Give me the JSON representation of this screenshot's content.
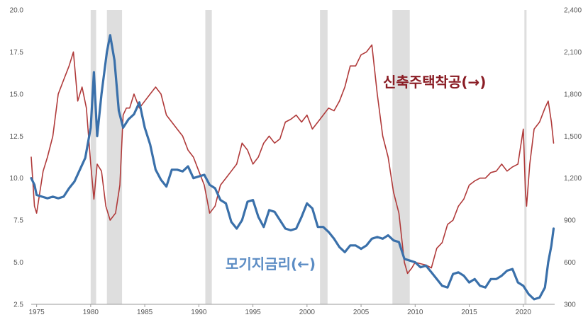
{
  "chart_data": {
    "type": "line",
    "title": "",
    "xlabel": "",
    "ylabel_left": "",
    "ylabel_right": "",
    "xlim": [
      1974.5,
      2022.9
    ],
    "y_left_lim": [
      2.5,
      20.0
    ],
    "y_right_lim": [
      300,
      2400
    ],
    "x_ticks": [
      "1975",
      "1980",
      "1985",
      "1990",
      "1995",
      "2000",
      "2005",
      "2010",
      "2015",
      "2020"
    ],
    "y_left_ticks": [
      "2.5",
      "5.0",
      "7.5",
      "10.0",
      "12.5",
      "15.0",
      "17.5",
      "20.0"
    ],
    "y_right_ticks": [
      "300",
      "600",
      "900",
      "1,200",
      "1,500",
      "1,800",
      "2,100",
      "2,400"
    ],
    "grid": "vertical none, horizontal none",
    "recessions": [
      [
        1980.0,
        1980.5
      ],
      [
        1981.5,
        1982.9
      ],
      [
        1990.6,
        1991.2
      ],
      [
        2001.2,
        2001.9
      ],
      [
        2007.9,
        2009.5
      ],
      [
        2020.1,
        2020.3
      ]
    ],
    "series": [
      {
        "name": "신축주택착공(→)",
        "axis": "right",
        "color": "#b03a3a",
        "x": [
          1974.5,
          1974.8,
          1975.0,
          1975.3,
          1975.6,
          1976.0,
          1976.5,
          1977.0,
          1977.5,
          1978.0,
          1978.4,
          1978.8,
          1979.2,
          1979.6,
          1980.0,
          1980.3,
          1980.6,
          1981.0,
          1981.4,
          1981.8,
          1982.3,
          1982.7,
          1983.0,
          1983.3,
          1983.6,
          1984.0,
          1984.5,
          1985.0,
          1985.5,
          1986.0,
          1986.5,
          1987.0,
          1987.5,
          1988.0,
          1988.5,
          1989.0,
          1989.5,
          1990.0,
          1990.5,
          1991.0,
          1991.5,
          1992.0,
          1992.5,
          1993.0,
          1993.5,
          1994.0,
          1994.5,
          1995.0,
          1995.5,
          1996.0,
          1996.5,
          1997.0,
          1997.5,
          1998.0,
          1998.5,
          1999.0,
          1999.5,
          2000.0,
          2000.5,
          2001.0,
          2001.5,
          2002.0,
          2002.5,
          2003.0,
          2003.5,
          2004.0,
          2004.5,
          2005.0,
          2005.5,
          2006.0,
          2006.5,
          2007.0,
          2007.5,
          2008.0,
          2008.5,
          2009.0,
          2009.3,
          2009.7,
          2010.0,
          2010.5,
          2011.0,
          2011.5,
          2012.0,
          2012.5,
          2013.0,
          2013.5,
          2014.0,
          2014.5,
          2015.0,
          2015.5,
          2016.0,
          2016.5,
          2017.0,
          2017.5,
          2018.0,
          2018.5,
          2019.0,
          2019.5,
          2020.0,
          2020.2,
          2020.3,
          2020.6,
          2021.0,
          2021.5,
          2022.0,
          2022.3,
          2022.6,
          2022.8
        ],
        "values": [
          1350,
          1000,
          950,
          1100,
          1250,
          1350,
          1500,
          1800,
          1900,
          2000,
          2100,
          1750,
          1850,
          1700,
          1300,
          1050,
          1300,
          1250,
          1000,
          900,
          950,
          1150,
          1650,
          1700,
          1700,
          1800,
          1700,
          1750,
          1800,
          1850,
          1800,
          1650,
          1600,
          1550,
          1500,
          1400,
          1350,
          1250,
          1150,
          950,
          1000,
          1150,
          1200,
          1250,
          1300,
          1450,
          1400,
          1300,
          1350,
          1450,
          1500,
          1450,
          1480,
          1600,
          1620,
          1650,
          1600,
          1650,
          1550,
          1600,
          1650,
          1700,
          1680,
          1750,
          1850,
          2000,
          2000,
          2080,
          2100,
          2150,
          1800,
          1500,
          1350,
          1100,
          950,
          600,
          520,
          560,
          600,
          590,
          580,
          560,
          700,
          740,
          870,
          900,
          1000,
          1050,
          1150,
          1180,
          1200,
          1200,
          1240,
          1250,
          1300,
          1250,
          1280,
          1300,
          1550,
          1100,
          1000,
          1300,
          1550,
          1600,
          1700,
          1750,
          1600,
          1450
        ]
      },
      {
        "name": "모기지금리(←)",
        "axis": "left",
        "color": "#3a70aa",
        "x": [
          1974.5,
          1974.8,
          1975.0,
          1975.5,
          1976.0,
          1976.5,
          1977.0,
          1977.5,
          1978.0,
          1978.5,
          1979.0,
          1979.5,
          1980.0,
          1980.3,
          1980.6,
          1981.0,
          1981.5,
          1981.8,
          1982.2,
          1982.6,
          1983.0,
          1983.5,
          1984.0,
          1984.5,
          1985.0,
          1985.5,
          1986.0,
          1986.5,
          1987.0,
          1987.5,
          1988.0,
          1988.5,
          1989.0,
          1989.5,
          1990.0,
          1990.5,
          1991.0,
          1991.5,
          1992.0,
          1992.5,
          1993.0,
          1993.5,
          1994.0,
          1994.5,
          1995.0,
          1995.5,
          1996.0,
          1996.5,
          1997.0,
          1997.5,
          1998.0,
          1998.5,
          1999.0,
          1999.5,
          2000.0,
          2000.5,
          2001.0,
          2001.5,
          2002.0,
          2002.5,
          2003.0,
          2003.5,
          2004.0,
          2004.5,
          2005.0,
          2005.5,
          2006.0,
          2006.5,
          2007.0,
          2007.5,
          2008.0,
          2008.5,
          2009.0,
          2009.5,
          2010.0,
          2010.5,
          2011.0,
          2011.5,
          2012.0,
          2012.5,
          2013.0,
          2013.5,
          2014.0,
          2014.5,
          2015.0,
          2015.5,
          2016.0,
          2016.5,
          2017.0,
          2017.5,
          2018.0,
          2018.5,
          2019.0,
          2019.5,
          2020.0,
          2020.5,
          2021.0,
          2021.5,
          2022.0,
          2022.3,
          2022.6,
          2022.8
        ],
        "values": [
          10.0,
          9.6,
          9.0,
          8.9,
          8.8,
          8.9,
          8.8,
          8.9,
          9.4,
          9.8,
          10.5,
          11.2,
          13.0,
          16.3,
          12.5,
          15.0,
          17.5,
          18.5,
          17.0,
          14.0,
          13.0,
          13.5,
          13.8,
          14.5,
          13.0,
          12.0,
          10.5,
          9.9,
          9.5,
          10.5,
          10.5,
          10.4,
          10.7,
          10.0,
          10.1,
          10.2,
          9.6,
          9.4,
          8.7,
          8.5,
          7.4,
          7.0,
          7.5,
          8.6,
          8.7,
          7.7,
          7.1,
          8.1,
          8.0,
          7.5,
          7.0,
          6.9,
          7.0,
          7.7,
          8.5,
          8.2,
          7.1,
          7.1,
          6.8,
          6.4,
          5.9,
          5.6,
          6.0,
          6.0,
          5.8,
          6.0,
          6.4,
          6.5,
          6.4,
          6.6,
          6.3,
          6.2,
          5.2,
          5.1,
          5.0,
          4.7,
          4.8,
          4.4,
          4.0,
          3.6,
          3.5,
          4.3,
          4.4,
          4.2,
          3.8,
          4.0,
          3.6,
          3.5,
          4.0,
          4.0,
          4.2,
          4.5,
          4.6,
          3.8,
          3.6,
          3.1,
          2.8,
          2.9,
          3.5,
          5.0,
          6.0,
          7.0
        ]
      }
    ]
  },
  "labels": {
    "housing": "신축주택착공(→)",
    "mortgage": "모기지금리(←)"
  }
}
